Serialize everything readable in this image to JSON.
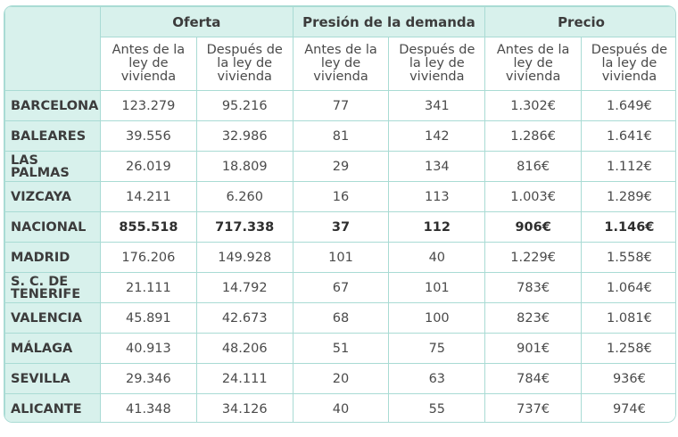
{
  "groups": [
    "Oferta",
    "Presión de la demanda",
    "Precio"
  ],
  "subheaders": [
    "Antes de la ley de vivienda",
    "Después de la ley de vivienda",
    "Antes de la ley de vivienda",
    "Después de la ley de vivienda",
    "Antes de la ley de vivienda",
    "Después de la ley de vivienda"
  ],
  "rows": [
    {
      "label": "BARCELONA",
      "values": [
        "123.279",
        "95.216",
        "77",
        "341",
        "1.302€",
        "1.649€"
      ]
    },
    {
      "label": "BALEARES",
      "values": [
        "39.556",
        "32.986",
        "81",
        "142",
        "1.286€",
        "1.641€"
      ]
    },
    {
      "label": "LAS PALMAS",
      "values": [
        "26.019",
        "18.809",
        "29",
        "134",
        "816€",
        "1.112€"
      ]
    },
    {
      "label": "VIZCAYA",
      "values": [
        "14.211",
        "6.260",
        "16",
        "113",
        "1.003€",
        "1.289€"
      ]
    },
    {
      "label": "NACIONAL",
      "values": [
        "855.518",
        "717.338",
        "37",
        "112",
        "906€",
        "1.146€"
      ],
      "bold": true
    },
    {
      "label": "MADRID",
      "values": [
        "176.206",
        "149.928",
        "101",
        "40",
        "1.229€",
        "1.558€"
      ]
    },
    {
      "label": "S. C. DE TENERIFE",
      "values": [
        "21.111",
        "14.792",
        "67",
        "101",
        "783€",
        "1.064€"
      ]
    },
    {
      "label": "VALENCIA",
      "values": [
        "45.891",
        "42.673",
        "68",
        "100",
        "823€",
        "1.081€"
      ]
    },
    {
      "label": "MÁLAGA",
      "values": [
        "40.913",
        "48.206",
        "51",
        "75",
        "901€",
        "1.258€"
      ]
    },
    {
      "label": "SEVILLA",
      "values": [
        "29.346",
        "24.111",
        "20",
        "63",
        "784€",
        "936€"
      ]
    },
    {
      "label": "ALICANTE",
      "values": [
        "41.348",
        "34.126",
        "40",
        "55",
        "737€",
        "974€"
      ]
    }
  ],
  "colors": {
    "header_bg": "#d8f1ec",
    "border": "#a9dbd4"
  }
}
